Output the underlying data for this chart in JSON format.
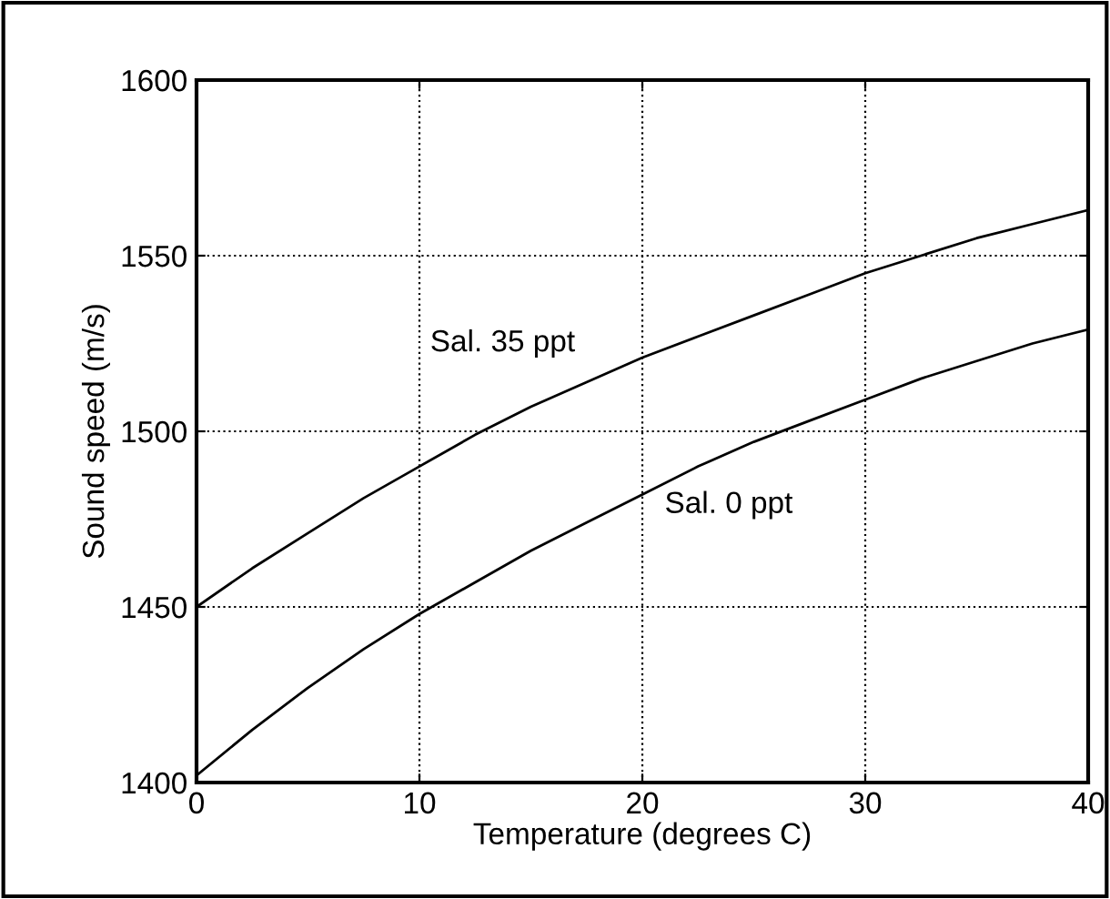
{
  "chart_data": {
    "type": "line",
    "xlabel": "Temperature (degrees C)",
    "ylabel": "Sound speed (m/s)",
    "x": [
      0,
      2.5,
      5,
      7.5,
      10,
      12.5,
      15,
      17.5,
      20,
      22.5,
      25,
      27.5,
      30,
      32.5,
      35,
      37.5,
      40
    ],
    "series": [
      {
        "name": "Sal. 35 ppt",
        "color": "#000000",
        "values": [
          1450,
          1461,
          1471,
          1481,
          1490,
          1499,
          1507,
          1514,
          1521,
          1527,
          1533,
          1539,
          1545,
          1550,
          1555,
          1559,
          1563
        ]
      },
      {
        "name": "Sal. 0 ppt",
        "color": "#000000",
        "values": [
          1402,
          1415,
          1427,
          1438,
          1448,
          1457,
          1466,
          1474,
          1482,
          1490,
          1497,
          1503,
          1509,
          1515,
          1520,
          1525,
          1529
        ]
      }
    ],
    "xlim": [
      0,
      40
    ],
    "xticks": [
      0,
      10,
      20,
      30,
      40
    ],
    "ylim": [
      1400,
      1600
    ],
    "yticks": [
      1400,
      1450,
      1500,
      1550,
      1600
    ],
    "grid": true,
    "legend": false,
    "marker": "none",
    "line_style": "solid"
  }
}
